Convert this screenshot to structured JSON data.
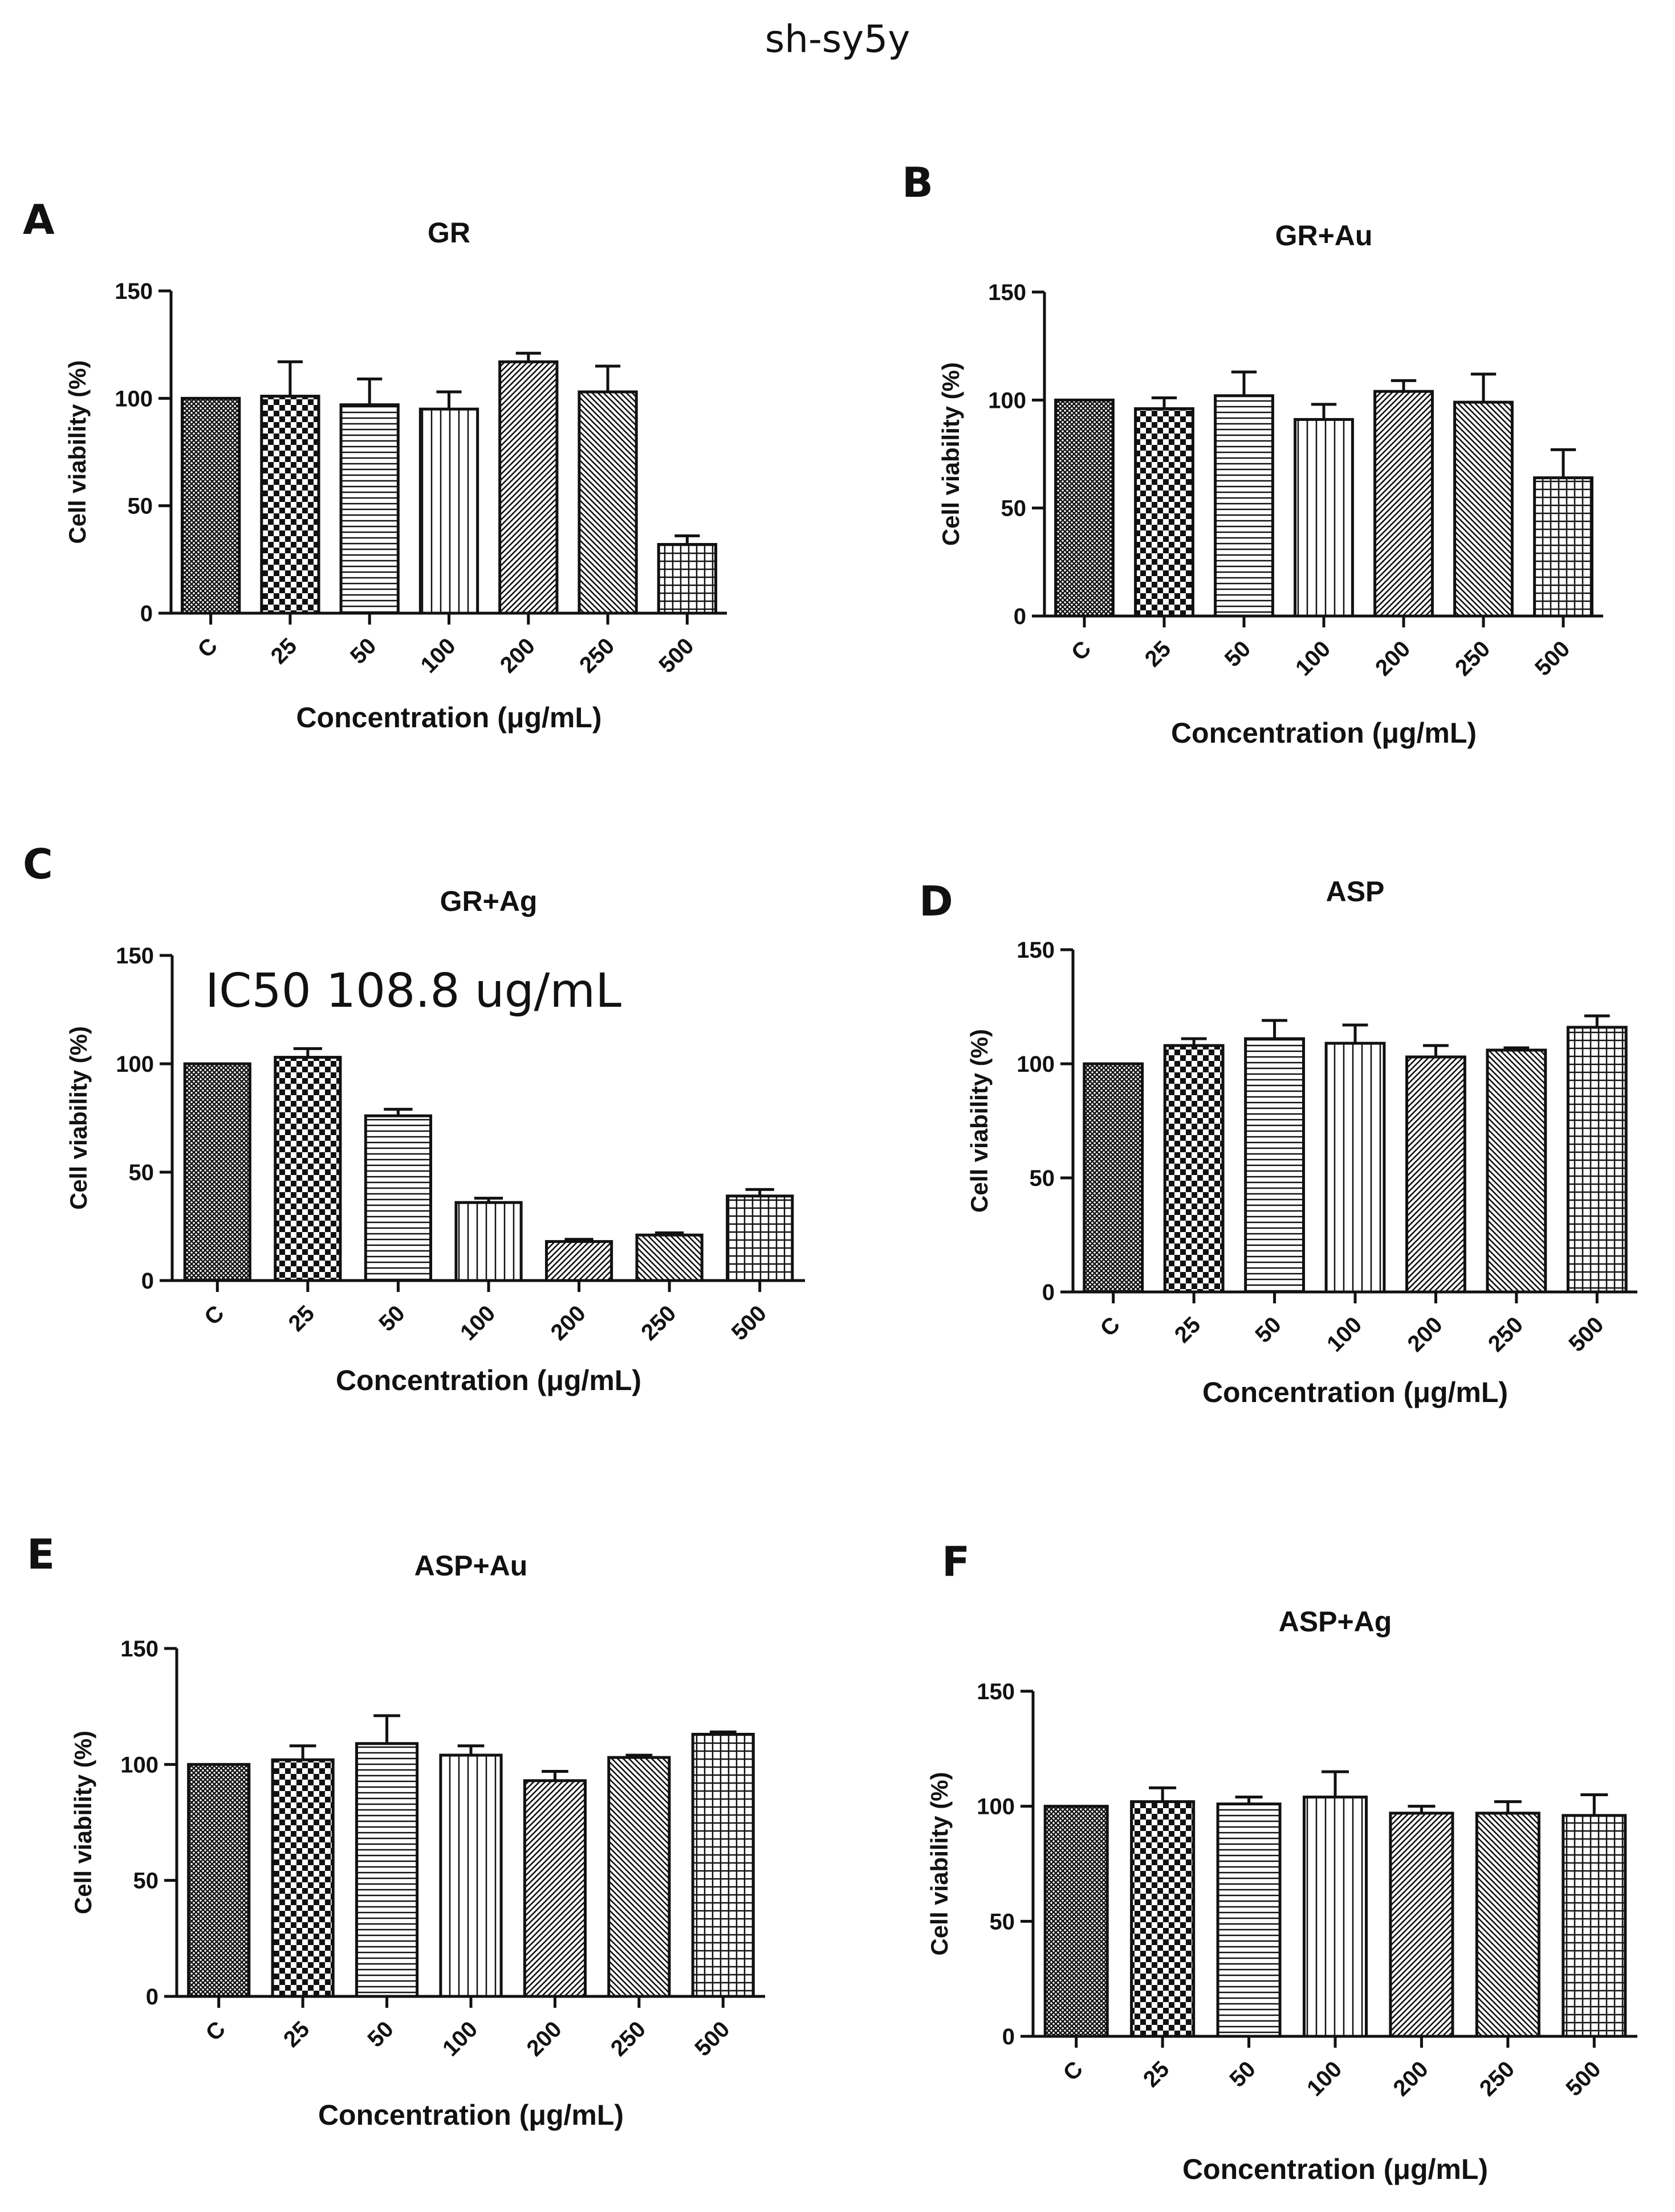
{
  "figure": {
    "title": "sh-sy5y"
  },
  "chart_data": [
    {
      "panel": "A",
      "type": "bar",
      "title": "GR",
      "categories": [
        "C",
        "25",
        "50",
        "100",
        "200",
        "250",
        "500"
      ],
      "values": [
        100,
        101,
        97,
        95,
        117,
        103,
        32
      ],
      "errors": [
        0,
        16,
        12,
        8,
        4,
        12,
        4
      ],
      "ylabel": "Cell viability (%)",
      "xlabel": "Concentration (μg/mL)",
      "ylim": [
        0,
        150
      ],
      "yticks": [
        0,
        50,
        100,
        150
      ],
      "annotation": ""
    },
    {
      "panel": "B",
      "type": "bar",
      "title": "GR+Au",
      "categories": [
        "C",
        "25",
        "50",
        "100",
        "200",
        "250",
        "500"
      ],
      "values": [
        100,
        96,
        102,
        91,
        104,
        99,
        64
      ],
      "errors": [
        0,
        5,
        11,
        7,
        5,
        13,
        13
      ],
      "ylabel": "Cell viability (%)",
      "xlabel": "Concentration (μg/mL)",
      "ylim": [
        0,
        150
      ],
      "yticks": [
        0,
        50,
        100,
        150
      ],
      "annotation": ""
    },
    {
      "panel": "C",
      "type": "bar",
      "title": "GR+Ag",
      "categories": [
        "C",
        "25",
        "50",
        "100",
        "200",
        "250",
        "500"
      ],
      "values": [
        100,
        103,
        76,
        36,
        18,
        21,
        39
      ],
      "errors": [
        0,
        4,
        3,
        2,
        1,
        1,
        3
      ],
      "ylabel": "Cell viability (%)",
      "xlabel": "Concentration (μg/mL)",
      "ylim": [
        0,
        150
      ],
      "yticks": [
        0,
        50,
        100,
        150
      ],
      "annotation": "IC50 108.8 ug/mL"
    },
    {
      "panel": "D",
      "type": "bar",
      "title": "ASP",
      "categories": [
        "C",
        "25",
        "50",
        "100",
        "200",
        "250",
        "500"
      ],
      "values": [
        100,
        108,
        111,
        109,
        103,
        106,
        116
      ],
      "errors": [
        0,
        3,
        8,
        8,
        5,
        1,
        5
      ],
      "ylabel": "Cell viability (%)",
      "xlabel": "Concentration (μg/mL)",
      "ylim": [
        0,
        150
      ],
      "yticks": [
        0,
        50,
        100,
        150
      ],
      "annotation": ""
    },
    {
      "panel": "E",
      "type": "bar",
      "title": "ASP+Au",
      "categories": [
        "C",
        "25",
        "50",
        "100",
        "200",
        "250",
        "500"
      ],
      "values": [
        100,
        102,
        109,
        104,
        93,
        103,
        113
      ],
      "errors": [
        0,
        6,
        12,
        4,
        4,
        1,
        1
      ],
      "ylabel": "Cell viability (%)",
      "xlabel": "Concentration (μg/mL)",
      "ylim": [
        0,
        150
      ],
      "yticks": [
        0,
        50,
        100,
        150
      ],
      "annotation": ""
    },
    {
      "panel": "F",
      "type": "bar",
      "title": "ASP+Ag",
      "categories": [
        "C",
        "25",
        "50",
        "100",
        "200",
        "250",
        "500"
      ],
      "values": [
        100,
        102,
        101,
        104,
        97,
        97,
        96
      ],
      "errors": [
        0,
        6,
        3,
        11,
        3,
        5,
        9
      ],
      "ylabel": "Cell viability (%)",
      "xlabel": "Concentration (μg/mL)",
      "ylim": [
        0,
        150
      ],
      "yticks": [
        0,
        50,
        100,
        150
      ],
      "annotation": ""
    }
  ]
}
